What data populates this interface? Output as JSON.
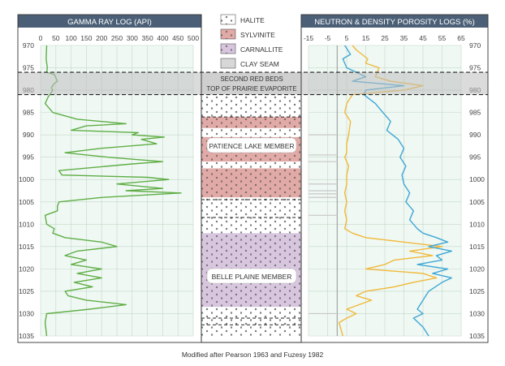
{
  "chart_data": {
    "type": "line",
    "caption": "Modified after Pearson 1963 and Fuzesy 1982",
    "depth_axis": {
      "min": 970,
      "max": 1035,
      "ticks": [
        970,
        975,
        980,
        985,
        990,
        995,
        1000,
        1005,
        1010,
        1015,
        1020,
        1025,
        1030,
        1035
      ]
    },
    "gamma": {
      "title": "GAMMA RAY LOG (API)",
      "xlim": [
        0,
        500
      ],
      "ticks": [
        0,
        50,
        100,
        150,
        200,
        250,
        300,
        350,
        400,
        450,
        500
      ],
      "series": [
        {
          "name": "Gamma Ray",
          "color": "#5fae46",
          "points": [
            [
              20,
              970
            ],
            [
              18,
              973
            ],
            [
              22,
              975
            ],
            [
              20,
              976
            ],
            [
              45,
              976.5
            ],
            [
              55,
              978
            ],
            [
              45,
              978.5
            ],
            [
              35,
              979.5
            ],
            [
              40,
              980
            ],
            [
              25,
              981.5
            ],
            [
              15,
              983
            ],
            [
              40,
              985
            ],
            [
              120,
              986.5
            ],
            [
              280,
              987.5
            ],
            [
              150,
              988
            ],
            [
              100,
              989
            ],
            [
              320,
              989.5
            ],
            [
              300,
              990
            ],
            [
              405,
              990.5
            ],
            [
              330,
              991
            ],
            [
              380,
              992
            ],
            [
              200,
              993
            ],
            [
              80,
              994
            ],
            [
              220,
              995
            ],
            [
              400,
              996
            ],
            [
              300,
              996.5
            ],
            [
              60,
              998
            ],
            [
              70,
              999
            ],
            [
              350,
              999.5
            ],
            [
              420,
              1000
            ],
            [
              250,
              1001
            ],
            [
              400,
              1002
            ],
            [
              280,
              1002.5
            ],
            [
              460,
              1003
            ],
            [
              200,
              1004
            ],
            [
              60,
              1005
            ],
            [
              55,
              1006
            ],
            [
              55,
              1007
            ],
            [
              15,
              1008
            ],
            [
              20,
              1010
            ],
            [
              45,
              1011
            ],
            [
              40,
              1012
            ],
            [
              80,
              1013
            ],
            [
              200,
              1014
            ],
            [
              250,
              1015
            ],
            [
              120,
              1016
            ],
            [
              80,
              1017
            ],
            [
              150,
              1018
            ],
            [
              100,
              1019
            ],
            [
              200,
              1020
            ],
            [
              120,
              1021
            ],
            [
              200,
              1022
            ],
            [
              110,
              1023
            ],
            [
              170,
              1024
            ],
            [
              80,
              1025
            ],
            [
              90,
              1026
            ],
            [
              150,
              1027
            ],
            [
              280,
              1028
            ],
            [
              160,
              1029
            ],
            [
              20,
              1030
            ],
            [
              15,
              1032
            ],
            [
              20,
              1035
            ]
          ]
        }
      ]
    },
    "lithology": {
      "legend": [
        {
          "name": "HALITE",
          "color": "#ffffff",
          "pattern": "halite"
        },
        {
          "name": "SYLVINITE",
          "color": "#e1aaa6",
          "pattern": "sylvinite"
        },
        {
          "name": "CARNALLITE",
          "color": "#d8c6df",
          "pattern": "carnallite"
        },
        {
          "name": "CLAY SEAM",
          "color": "#d7d7d7",
          "pattern": "clay"
        }
      ],
      "units": [
        {
          "top": 981,
          "base": 986,
          "type": "halite"
        },
        {
          "top": 986,
          "base": 988.5,
          "type": "sylvinite"
        },
        {
          "top": 988.5,
          "base": 990.5,
          "type": "halite"
        },
        {
          "top": 990.5,
          "base": 996,
          "type": "sylvinite"
        },
        {
          "top": 996,
          "base": 997.5,
          "type": "halite"
        },
        {
          "top": 997.5,
          "base": 999.5,
          "type": "sylvinite"
        },
        {
          "top": 999.5,
          "base": 1004,
          "type": "sylvinite"
        },
        {
          "top": 1004,
          "base": 1012,
          "type": "halite"
        },
        {
          "top": 1012,
          "base": 1028.5,
          "type": "carnallite"
        },
        {
          "top": 1028.5,
          "base": 1035,
          "type": "halite"
        }
      ],
      "dashed_lines": [
        976,
        981,
        986,
        1004.5,
        1008.5,
        1031,
        1032.5
      ],
      "second_red_beds": "SECOND RED BEDS",
      "top_prairie": "TOP OF PRAIRIE EVAPORITE",
      "patience_lake": "PATIENCE LAKE MEMBER",
      "belle_plaine": "BELLE PLAINE MEMBER"
    },
    "porosity": {
      "title": "NEUTRON & DENSITY POROSITY LOGS (%)",
      "xlim": [
        -15,
        65
      ],
      "ticks": [
        -15,
        -5,
        5,
        15,
        25,
        35,
        45,
        55,
        65
      ],
      "series": [
        {
          "name": "Density porosity",
          "color": "#f0b93a",
          "points": [
            [
              8,
              970
            ],
            [
              10,
              971
            ],
            [
              16,
              973
            ],
            [
              15,
              974
            ],
            [
              22,
              975
            ],
            [
              20,
              977
            ],
            [
              28,
              978
            ],
            [
              45,
              979
            ],
            [
              35,
              980
            ],
            [
              8,
              981
            ],
            [
              5,
              983
            ],
            [
              4,
              985
            ],
            [
              7,
              987
            ],
            [
              6,
              990
            ],
            [
              5,
              992
            ],
            [
              5,
              994
            ],
            [
              4,
              995
            ],
            [
              6,
              997
            ],
            [
              5,
              999
            ],
            [
              5,
              1001
            ],
            [
              4,
              1003
            ],
            [
              5,
              1005
            ],
            [
              4,
              1007
            ],
            [
              5,
              1009
            ],
            [
              4,
              1011
            ],
            [
              8,
              1012
            ],
            [
              15,
              1013
            ],
            [
              35,
              1014
            ],
            [
              55,
              1015
            ],
            [
              38,
              1016
            ],
            [
              50,
              1017
            ],
            [
              30,
              1018
            ],
            [
              25,
              1019
            ],
            [
              15,
              1020
            ],
            [
              45,
              1021
            ],
            [
              52,
              1022
            ],
            [
              40,
              1023
            ],
            [
              30,
              1024
            ],
            [
              15,
              1025
            ],
            [
              10,
              1026
            ],
            [
              18,
              1027
            ],
            [
              5,
              1029
            ],
            [
              10,
              1030
            ],
            [
              5,
              1031
            ],
            [
              1,
              1032
            ],
            [
              3,
              1035
            ]
          ]
        },
        {
          "name": "Neutron porosity",
          "color": "#3ea7d6",
          "points": [
            [
              4,
              970
            ],
            [
              7,
              972
            ],
            [
              3,
              973
            ],
            [
              5,
              975
            ],
            [
              10,
              976
            ],
            [
              15,
              977
            ],
            [
              8,
              978
            ],
            [
              35,
              979
            ],
            [
              15,
              980
            ],
            [
              14,
              981
            ],
            [
              20,
              983
            ],
            [
              24,
              985
            ],
            [
              28,
              987
            ],
            [
              26,
              989
            ],
            [
              32,
              991
            ],
            [
              35,
              993
            ],
            [
              33,
              995
            ],
            [
              36,
              997
            ],
            [
              34,
              999
            ],
            [
              35,
              1001
            ],
            [
              38,
              1003
            ],
            [
              36,
              1005
            ],
            [
              40,
              1007
            ],
            [
              38,
              1009
            ],
            [
              42,
              1011
            ],
            [
              45,
              1012
            ],
            [
              52,
              1013
            ],
            [
              58,
              1014
            ],
            [
              48,
              1015
            ],
            [
              60,
              1016
            ],
            [
              52,
              1017
            ],
            [
              55,
              1018
            ],
            [
              42,
              1019
            ],
            [
              58,
              1020
            ],
            [
              50,
              1021
            ],
            [
              60,
              1022
            ],
            [
              55,
              1023
            ],
            [
              48,
              1025
            ],
            [
              45,
              1027
            ],
            [
              42,
              1029
            ],
            [
              45,
              1030
            ],
            [
              40,
              1031
            ],
            [
              45,
              1033
            ],
            [
              48,
              1035
            ]
          ]
        }
      ],
      "baseline": 0
    }
  }
}
